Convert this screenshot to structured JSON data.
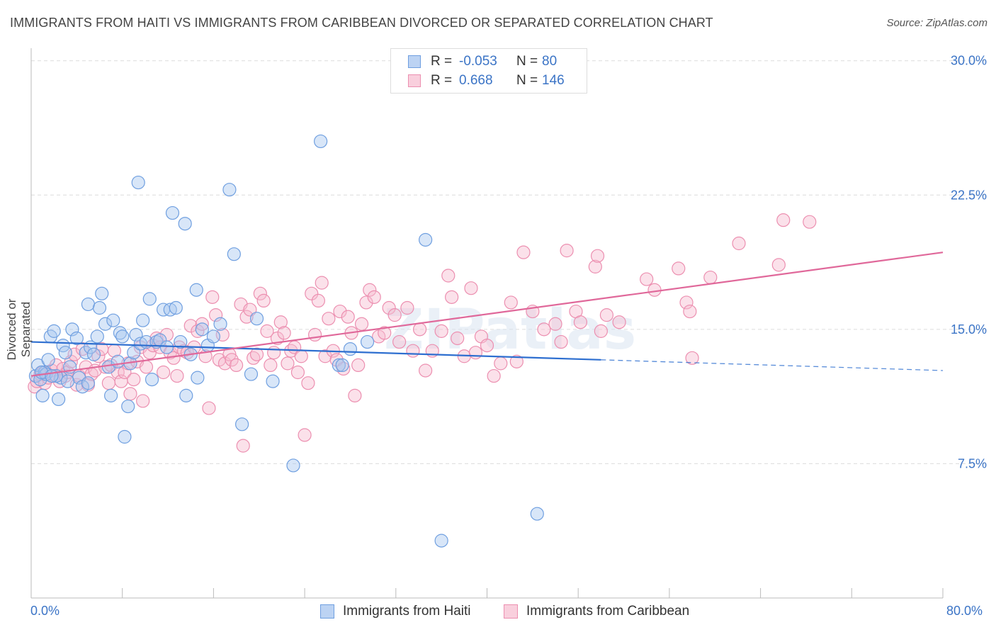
{
  "header": {
    "title": "IMMIGRANTS FROM HAITI VS IMMIGRANTS FROM CARIBBEAN DIVORCED OR SEPARATED CORRELATION CHART",
    "source": "Source: ZipAtlas.com"
  },
  "legend": {
    "rows": [
      {
        "r_label": "R =",
        "r_value": "-0.053",
        "n_label": "N =",
        "n_value": "80"
      },
      {
        "r_label": "R =",
        "r_value": "0.668",
        "n_label": "N =",
        "n_value": "146"
      }
    ]
  },
  "colors": {
    "haiti_fill": "#a9c7ef",
    "haiti_stroke": "#6f9fe0",
    "haiti_line": "#2e6fd0",
    "caribbean_fill": "#f6bdd0",
    "caribbean_stroke": "#ec8fb0",
    "caribbean_line": "#e0689a",
    "axis_text": "#3b74c6",
    "grid": "#dcdcdc"
  },
  "watermark": "ZIPatlas",
  "chart_data": {
    "type": "scatter",
    "title": "IMMIGRANTS FROM HAITI VS IMMIGRANTS FROM CARIBBEAN DIVORCED OR SEPARATED CORRELATION CHART",
    "xlabel": "",
    "ylabel": "Divorced or Separated",
    "xlim": [
      0,
      80
    ],
    "ylim": [
      0,
      30.7
    ],
    "x_tick_labels": [
      "0.0%",
      "80.0%"
    ],
    "y_ticks": [
      7.5,
      15.0,
      22.5,
      30.0
    ],
    "y_tick_labels": [
      "7.5%",
      "15.0%",
      "22.5%",
      "30.0%"
    ],
    "grid": true,
    "legend_position": "top-center",
    "series": [
      {
        "name": "Immigrants from Haiti",
        "r": -0.053,
        "n": 80,
        "trend": {
          "x": [
            0,
            50
          ],
          "y": [
            14.3,
            13.3
          ],
          "dashed_to": [
            80,
            12.7
          ]
        },
        "points": [
          [
            0.4,
            12.4
          ],
          [
            0.6,
            13.0
          ],
          [
            0.8,
            12.2
          ],
          [
            1.0,
            11.3
          ],
          [
            1.2,
            12.6
          ],
          [
            1.5,
            13.3
          ],
          [
            1.7,
            14.6
          ],
          [
            2.0,
            14.9
          ],
          [
            2.4,
            11.1
          ],
          [
            2.6,
            12.3
          ],
          [
            2.8,
            14.1
          ],
          [
            3.0,
            13.7
          ],
          [
            3.4,
            12.9
          ],
          [
            3.6,
            15.0
          ],
          [
            4.0,
            14.5
          ],
          [
            4.2,
            12.3
          ],
          [
            4.5,
            11.8
          ],
          [
            4.8,
            13.7
          ],
          [
            5.0,
            16.4
          ],
          [
            5.2,
            14.0
          ],
          [
            5.5,
            13.6
          ],
          [
            5.8,
            14.6
          ],
          [
            6.0,
            16.2
          ],
          [
            6.2,
            17.0
          ],
          [
            6.5,
            15.3
          ],
          [
            6.8,
            12.9
          ],
          [
            7.0,
            11.3
          ],
          [
            7.2,
            15.5
          ],
          [
            7.6,
            13.2
          ],
          [
            7.8,
            14.8
          ],
          [
            8.0,
            14.6
          ],
          [
            8.2,
            9.0
          ],
          [
            8.5,
            10.7
          ],
          [
            8.7,
            13.1
          ],
          [
            9.0,
            13.7
          ],
          [
            9.2,
            14.7
          ],
          [
            9.4,
            23.2
          ],
          [
            9.6,
            14.2
          ],
          [
            9.8,
            15.5
          ],
          [
            10.1,
            14.3
          ],
          [
            10.4,
            16.7
          ],
          [
            10.6,
            12.2
          ],
          [
            11.0,
            14.3
          ],
          [
            11.3,
            14.4
          ],
          [
            11.6,
            16.1
          ],
          [
            11.9,
            14.0
          ],
          [
            12.2,
            16.1
          ],
          [
            12.4,
            21.5
          ],
          [
            12.7,
            16.2
          ],
          [
            13.1,
            14.3
          ],
          [
            13.5,
            20.9
          ],
          [
            13.6,
            11.3
          ],
          [
            14.0,
            13.6
          ],
          [
            14.5,
            17.2
          ],
          [
            14.6,
            12.3
          ],
          [
            15.0,
            15.0
          ],
          [
            15.5,
            14.1
          ],
          [
            16.0,
            14.6
          ],
          [
            16.6,
            15.3
          ],
          [
            17.4,
            22.8
          ],
          [
            17.8,
            19.2
          ],
          [
            18.5,
            9.7
          ],
          [
            19.3,
            12.5
          ],
          [
            19.8,
            15.6
          ],
          [
            21.2,
            12.1
          ],
          [
            23.0,
            7.4
          ],
          [
            25.4,
            25.5
          ],
          [
            27.0,
            13.0
          ],
          [
            27.3,
            13.0
          ],
          [
            28.0,
            13.9
          ],
          [
            29.5,
            14.3
          ],
          [
            34.6,
            20.0
          ],
          [
            36.0,
            3.2
          ],
          [
            44.4,
            4.7
          ],
          [
            1.3,
            12.5
          ],
          [
            2.2,
            12.4
          ],
          [
            3.2,
            12.1
          ],
          [
            0.9,
            12.6
          ],
          [
            1.8,
            12.4
          ],
          [
            5.0,
            12.0
          ]
        ]
      },
      {
        "name": "Immigrants from Caribbean",
        "r": 0.668,
        "n": 146,
        "trend": {
          "x": [
            0,
            80
          ],
          "y": [
            12.4,
            19.3
          ]
        },
        "points": [
          [
            0.3,
            11.8
          ],
          [
            0.5,
            12.1
          ],
          [
            0.8,
            12.5
          ],
          [
            1.0,
            12.6
          ],
          [
            1.2,
            12.0
          ],
          [
            1.5,
            12.3
          ],
          [
            1.8,
            12.7
          ],
          [
            2.0,
            12.4
          ],
          [
            2.2,
            13.0
          ],
          [
            2.5,
            12.1
          ],
          [
            2.8,
            12.8
          ],
          [
            3.0,
            12.4
          ],
          [
            3.2,
            12.6
          ],
          [
            3.5,
            13.2
          ],
          [
            3.8,
            13.6
          ],
          [
            4.0,
            11.9
          ],
          [
            4.2,
            12.4
          ],
          [
            4.5,
            13.9
          ],
          [
            4.8,
            12.9
          ],
          [
            5.0,
            11.9
          ],
          [
            5.3,
            12.5
          ],
          [
            5.6,
            12.7
          ],
          [
            5.9,
            13.5
          ],
          [
            6.2,
            13.9
          ],
          [
            6.5,
            12.9
          ],
          [
            6.8,
            12.0
          ],
          [
            7.0,
            13.0
          ],
          [
            7.3,
            13.8
          ],
          [
            7.6,
            12.6
          ],
          [
            7.9,
            12.1
          ],
          [
            8.2,
            12.6
          ],
          [
            8.5,
            13.1
          ],
          [
            8.7,
            11.4
          ],
          [
            9.0,
            12.2
          ],
          [
            9.3,
            13.2
          ],
          [
            9.6,
            14.0
          ],
          [
            9.8,
            11.0
          ],
          [
            10.1,
            12.9
          ],
          [
            10.4,
            13.7
          ],
          [
            10.7,
            14.1
          ],
          [
            11.0,
            14.5
          ],
          [
            11.3,
            14.0
          ],
          [
            11.6,
            12.6
          ],
          [
            11.9,
            14.7
          ],
          [
            12.2,
            13.7
          ],
          [
            12.5,
            13.4
          ],
          [
            12.8,
            12.4
          ],
          [
            13.0,
            14.0
          ],
          [
            13.4,
            13.8
          ],
          [
            13.7,
            13.7
          ],
          [
            14.0,
            15.2
          ],
          [
            14.3,
            14.0
          ],
          [
            14.6,
            14.9
          ],
          [
            15.0,
            15.3
          ],
          [
            15.3,
            13.5
          ],
          [
            15.6,
            10.6
          ],
          [
            15.9,
            16.8
          ],
          [
            16.2,
            15.8
          ],
          [
            16.5,
            13.3
          ],
          [
            16.8,
            14.7
          ],
          [
            17.0,
            13.1
          ],
          [
            17.4,
            13.6
          ],
          [
            17.6,
            13.3
          ],
          [
            18.0,
            13.0
          ],
          [
            18.4,
            16.4
          ],
          [
            18.6,
            8.5
          ],
          [
            18.9,
            15.7
          ],
          [
            19.2,
            16.1
          ],
          [
            19.5,
            13.4
          ],
          [
            19.8,
            13.6
          ],
          [
            20.1,
            17.0
          ],
          [
            20.4,
            16.6
          ],
          [
            20.7,
            14.9
          ],
          [
            21.0,
            13.0
          ],
          [
            21.3,
            13.7
          ],
          [
            21.6,
            14.5
          ],
          [
            21.9,
            15.4
          ],
          [
            22.2,
            14.8
          ],
          [
            22.5,
            13.1
          ],
          [
            22.8,
            13.8
          ],
          [
            23.1,
            14.0
          ],
          [
            23.4,
            12.6
          ],
          [
            23.7,
            13.5
          ],
          [
            24.0,
            9.1
          ],
          [
            24.3,
            12.0
          ],
          [
            24.6,
            17.0
          ],
          [
            24.9,
            14.7
          ],
          [
            25.2,
            16.6
          ],
          [
            25.5,
            17.6
          ],
          [
            25.8,
            13.5
          ],
          [
            26.1,
            15.6
          ],
          [
            26.5,
            13.8
          ],
          [
            26.8,
            13.3
          ],
          [
            27.1,
            16.0
          ],
          [
            27.4,
            12.8
          ],
          [
            27.8,
            15.7
          ],
          [
            28.1,
            14.8
          ],
          [
            28.4,
            11.3
          ],
          [
            28.7,
            13.0
          ],
          [
            29.0,
            15.3
          ],
          [
            29.4,
            16.5
          ],
          [
            29.7,
            17.2
          ],
          [
            30.1,
            16.8
          ],
          [
            30.5,
            14.6
          ],
          [
            31.0,
            14.8
          ],
          [
            31.4,
            16.2
          ],
          [
            31.9,
            15.8
          ],
          [
            32.3,
            14.3
          ],
          [
            33.0,
            16.2
          ],
          [
            33.5,
            13.8
          ],
          [
            34.1,
            15.0
          ],
          [
            34.6,
            12.7
          ],
          [
            35.2,
            13.8
          ],
          [
            36.0,
            14.9
          ],
          [
            36.6,
            18.0
          ],
          [
            36.9,
            16.8
          ],
          [
            37.4,
            14.5
          ],
          [
            38.0,
            13.5
          ],
          [
            38.6,
            17.3
          ],
          [
            39.0,
            13.7
          ],
          [
            39.5,
            14.6
          ],
          [
            40.0,
            14.1
          ],
          [
            40.6,
            12.4
          ],
          [
            41.2,
            13.1
          ],
          [
            42.1,
            16.5
          ],
          [
            42.6,
            13.2
          ],
          [
            43.2,
            19.3
          ],
          [
            44.0,
            16.0
          ],
          [
            45.0,
            15.0
          ],
          [
            46.0,
            15.3
          ],
          [
            46.5,
            14.3
          ],
          [
            47.0,
            19.4
          ],
          [
            47.8,
            16.0
          ],
          [
            48.2,
            15.4
          ],
          [
            49.5,
            18.5
          ],
          [
            49.7,
            19.1
          ],
          [
            50.0,
            14.9
          ],
          [
            50.5,
            15.8
          ],
          [
            51.6,
            15.4
          ],
          [
            54.0,
            17.8
          ],
          [
            54.7,
            17.2
          ],
          [
            56.8,
            18.4
          ],
          [
            57.5,
            16.5
          ],
          [
            57.8,
            16.0
          ],
          [
            58.0,
            13.4
          ],
          [
            59.6,
            17.9
          ],
          [
            62.1,
            19.8
          ],
          [
            65.6,
            18.6
          ],
          [
            66.0,
            21.1
          ],
          [
            68.3,
            21.0
          ]
        ]
      }
    ]
  },
  "bottom_legend": {
    "items": [
      {
        "label": "Immigrants from Haiti"
      },
      {
        "label": "Immigrants from Caribbean"
      }
    ]
  }
}
